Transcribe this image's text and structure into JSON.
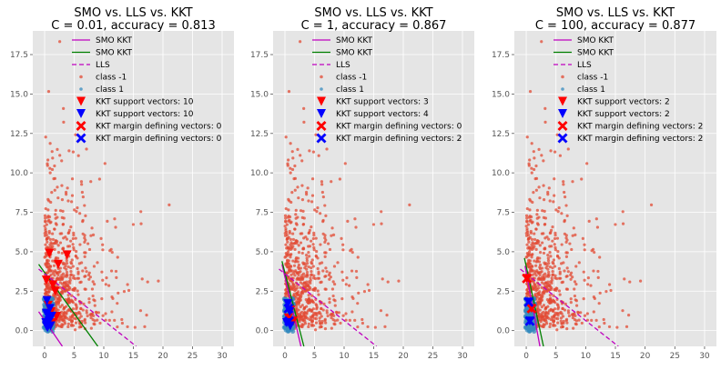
{
  "chart_data": [
    {
      "type": "scatter",
      "title_line1": "SMO vs. LLS vs. KKT",
      "title_line2": "C = 0.01, accuracy = 0.813",
      "xlim": [
        -2,
        32
      ],
      "ylim": [
        -1.0,
        19.0
      ],
      "xticks": [
        0,
        5,
        10,
        15,
        20,
        25,
        30
      ],
      "yticks": [
        0.0,
        2.5,
        5.0,
        7.5,
        10.0,
        12.5,
        15.0,
        17.5
      ],
      "grid": true,
      "legend_position": "top-right",
      "lines": [
        {
          "name": "SMO KKT",
          "color": "#bf00bf",
          "dash": false,
          "points": [
            [
              -1.0,
              1.2
            ],
            [
              3.0,
              -1.0
            ]
          ]
        },
        {
          "name": "SMO KKT",
          "color": "#008000",
          "dash": false,
          "points": [
            [
              -1.0,
              4.2
            ],
            [
              9.0,
              -1.0
            ]
          ]
        },
        {
          "name": "LLS",
          "color": "#bf00bf",
          "dash": true,
          "points": [
            [
              -1.0,
              3.9
            ],
            [
              15.5,
              -1.0
            ]
          ]
        }
      ],
      "sv_class_neg": [
        [
          0.8,
          4.9
        ],
        [
          2.3,
          4.2
        ],
        [
          3.8,
          4.8
        ],
        [
          0.3,
          3.2
        ],
        [
          1.4,
          2.9
        ],
        [
          1.8,
          2.5
        ],
        [
          0.6,
          1.6
        ],
        [
          1.1,
          1.2
        ],
        [
          2.0,
          0.9
        ],
        [
          1.3,
          0.5
        ]
      ],
      "sv_class_pos": [
        [
          0.4,
          1.9
        ],
        [
          0.9,
          1.4
        ],
        [
          0.3,
          1.1
        ],
        [
          1.2,
          0.9
        ],
        [
          0.7,
          0.6
        ],
        [
          0.2,
          0.5
        ],
        [
          1.0,
          0.3
        ],
        [
          0.5,
          0.2
        ],
        [
          0.8,
          0.8
        ],
        [
          0.3,
          0.3
        ]
      ],
      "margin_neg": [],
      "margin_pos": []
    },
    {
      "type": "scatter",
      "title_line1": "SMO vs. LLS vs. KKT",
      "title_line2": "C = 1, accuracy = 0.867",
      "xlim": [
        -2,
        32
      ],
      "ylim": [
        -1.0,
        19.0
      ],
      "xticks": [
        0,
        5,
        10,
        15,
        20,
        25,
        30
      ],
      "yticks": [
        0.0,
        2.5,
        5.0,
        7.5,
        10.0,
        12.5,
        15.0,
        17.5
      ],
      "grid": true,
      "legend_position": "top-right",
      "lines": [
        {
          "name": "SMO KKT",
          "color": "#bf00bf",
          "dash": false,
          "points": [
            [
              -0.5,
              4.2
            ],
            [
              2.7,
              -1.0
            ]
          ]
        },
        {
          "name": "SMO KKT",
          "color": "#008000",
          "dash": false,
          "points": [
            [
              -0.5,
              4.4
            ],
            [
              3.2,
              -1.0
            ]
          ]
        },
        {
          "name": "LLS",
          "color": "#bf00bf",
          "dash": true,
          "points": [
            [
              -1.0,
              3.9
            ],
            [
              15.5,
              -1.0
            ]
          ]
        }
      ],
      "sv_class_neg": [
        [
          1.0,
          1.3
        ],
        [
          0.6,
          0.8
        ],
        [
          1.4,
          0.6
        ]
      ],
      "sv_class_pos": [
        [
          0.5,
          1.7
        ],
        [
          0.8,
          1.2
        ],
        [
          0.3,
          0.5
        ],
        [
          0.9,
          0.3
        ]
      ],
      "margin_neg": [],
      "margin_pos": [
        [
          0.6,
          1.4
        ],
        [
          0.7,
          0.6
        ]
      ]
    },
    {
      "type": "scatter",
      "title_line1": "SMO vs. LLS vs. KKT",
      "title_line2": "C = 100, accuracy = 0.877",
      "xlim": [
        -2,
        32
      ],
      "ylim": [
        -1.0,
        19.0
      ],
      "xticks": [
        0,
        5,
        10,
        15,
        20,
        25,
        30
      ],
      "yticks": [
        0.0,
        2.5,
        5.0,
        7.5,
        10.0,
        12.5,
        15.0,
        17.5
      ],
      "grid": true,
      "legend_position": "top-right",
      "lines": [
        {
          "name": "SMO KKT",
          "color": "#bf00bf",
          "dash": false,
          "points": [
            [
              -0.2,
              4.1
            ],
            [
              2.3,
              -1.0
            ]
          ]
        },
        {
          "name": "SMO KKT",
          "color": "#008000",
          "dash": false,
          "points": [
            [
              -0.3,
              4.6
            ],
            [
              2.9,
              -1.0
            ]
          ]
        },
        {
          "name": "LLS",
          "color": "#bf00bf",
          "dash": true,
          "points": [
            [
              -1.0,
              3.9
            ],
            [
              15.5,
              -1.0
            ]
          ]
        }
      ],
      "sv_class_neg": [
        [
          0.1,
          3.3
        ],
        [
          0.9,
          1.4
        ]
      ],
      "sv_class_pos": [
        [
          0.4,
          1.8
        ],
        [
          0.6,
          0.6
        ]
      ],
      "margin_neg": [
        [
          0.1,
          3.3
        ],
        [
          0.9,
          1.4
        ]
      ],
      "margin_pos": [
        [
          0.4,
          1.8
        ],
        [
          0.6,
          0.6
        ]
      ]
    }
  ],
  "legends": [
    [
      "SMO KKT",
      "SMO KKT",
      "LLS",
      "class -1",
      "class 1",
      "KKT support vectors: 10",
      "KKT support vectors: 10",
      "KKT margin defining vectors: 0",
      "KKT margin defining vectors: 0"
    ],
    [
      "SMO KKT",
      "SMO KKT",
      "LLS",
      "class -1",
      "class 1",
      "KKT support vectors: 3",
      "KKT support vectors: 4",
      "KKT margin defining vectors: 0",
      "KKT margin defining vectors: 2"
    ],
    [
      "SMO KKT",
      "SMO KKT",
      "LLS",
      "class -1",
      "class 1",
      "KKT support vectors: 2",
      "KKT support vectors: 2",
      "KKT margin defining vectors: 2",
      "KKT margin defining vectors: 2"
    ]
  ],
  "colors": {
    "plot_bg": "#e5e5e5",
    "grid": "#ffffff",
    "class_neg": "#e24a33",
    "class_pos": "#348abd",
    "sv_neg": "#ff0000",
    "sv_pos": "#0000ff"
  }
}
